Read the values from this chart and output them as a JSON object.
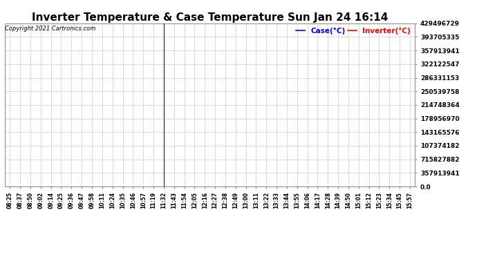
{
  "title": "Inverter Temperature & Case Temperature Sun Jan 24 16:14",
  "copyright": "Copyright 2021 Cartronics.com",
  "legend_case_label": "Case(°C)",
  "legend_inverter_label": "Inverter(°C)",
  "legend_case_color": "blue",
  "legend_inverter_color": "red",
  "background_color": "#ffffff",
  "grid_color": "#bbbbbb",
  "title_fontsize": 11,
  "ymax": 4294967296,
  "ymin": 0,
  "ytick_labels": [
    "0.0",
    "357913941",
    "715827882",
    "107374182",
    "143165576",
    "178956970",
    "214748364",
    "250539758",
    "286331153",
    "322122547",
    "357913941",
    "393705335",
    "429496729"
  ],
  "blue_line_time": "11:32",
  "x_ticklabels": [
    "08:25",
    "08:37",
    "08:50",
    "09:02",
    "09:14",
    "09:25",
    "09:36",
    "09:47",
    "09:58",
    "10:11",
    "10:24",
    "10:35",
    "10:46",
    "10:57",
    "11:19",
    "11:32",
    "11:43",
    "11:54",
    "12:05",
    "12:16",
    "12:27",
    "12:38",
    "12:49",
    "13:00",
    "13:11",
    "13:22",
    "13:33",
    "13:44",
    "13:55",
    "14:06",
    "14:17",
    "14:28",
    "14:39",
    "14:50",
    "15:01",
    "15:12",
    "15:23",
    "15:34",
    "15:45",
    "15:57"
  ]
}
